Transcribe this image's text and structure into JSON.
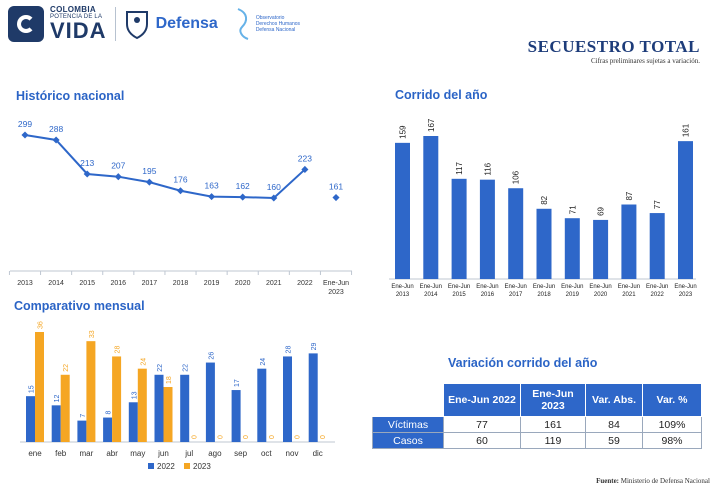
{
  "header": {
    "logo_line1": "COLOMBIA",
    "logo_line2": "POTENCIA DE LA",
    "logo_line3": "VIDA",
    "ministry": "Defensa",
    "observatory_line1": "Observatorio",
    "observatory_line2": "Derechos Humanos",
    "observatory_line3": "Defensa Nacional",
    "title": "SECUESTRO TOTAL",
    "subtitle": "Cifras preliminares sujetas a variación."
  },
  "colors": {
    "blue": "#2e67c9",
    "orange": "#f5a623",
    "navy": "#1d3c7a"
  },
  "sections": {
    "historico": "Histórico nacional",
    "corrido": "Corrido del año",
    "mensual": "Comparativo mensual",
    "variacion": "Variación corrido del año"
  },
  "chart_data": [
    {
      "type": "line",
      "title": "Histórico nacional",
      "categories": [
        "2013",
        "2014",
        "2015",
        "2016",
        "2017",
        "2018",
        "2019",
        "2020",
        "2021",
        "2022",
        "Ene-Jun 2023"
      ],
      "values": [
        299,
        288,
        213,
        207,
        195,
        176,
        163,
        162,
        160,
        223,
        161
      ],
      "note": "last point (Ene-Jun 2023) is shown as an isolated marker, not connected"
    },
    {
      "type": "bar",
      "title": "Corrido del año",
      "categories": [
        "Ene-Jun 2013",
        "Ene-Jun 2014",
        "Ene-Jun 2015",
        "Ene-Jun 2016",
        "Ene-Jun 2017",
        "Ene-Jun 2018",
        "Ene-Jun 2019",
        "Ene-Jun 2020",
        "Ene-Jun 2021",
        "Ene-Jun 2022",
        "Ene-Jun 2023"
      ],
      "values": [
        159,
        167,
        117,
        116,
        106,
        82,
        71,
        69,
        87,
        77,
        161
      ],
      "ylim": [
        0,
        180
      ]
    },
    {
      "type": "bar",
      "title": "Comparativo mensual",
      "categories": [
        "ene",
        "feb",
        "mar",
        "abr",
        "may",
        "jun",
        "jul",
        "ago",
        "sep",
        "oct",
        "nov",
        "dic"
      ],
      "series": [
        {
          "name": "2022",
          "values": [
            15,
            12,
            7,
            8,
            13,
            22,
            22,
            26,
            17,
            24,
            28,
            29
          ]
        },
        {
          "name": "2023",
          "values": [
            36,
            22,
            33,
            28,
            24,
            18,
            0,
            0,
            0,
            0,
            0,
            0
          ]
        }
      ],
      "ylim": [
        0,
        38
      ]
    }
  ],
  "variation_table": {
    "headers": [
      "",
      "Ene-Jun 2022",
      "Ene-Jun 2023",
      "Var. Abs.",
      "Var. %"
    ],
    "rows": [
      {
        "label": "Víctimas",
        "cells": [
          "77",
          "161",
          "84",
          "109%"
        ]
      },
      {
        "label": "Casos",
        "cells": [
          "60",
          "119",
          "59",
          "98%"
        ]
      }
    ]
  },
  "source": {
    "label": "Fuente:",
    "text": "Ministerio de Defensa Nacional"
  }
}
